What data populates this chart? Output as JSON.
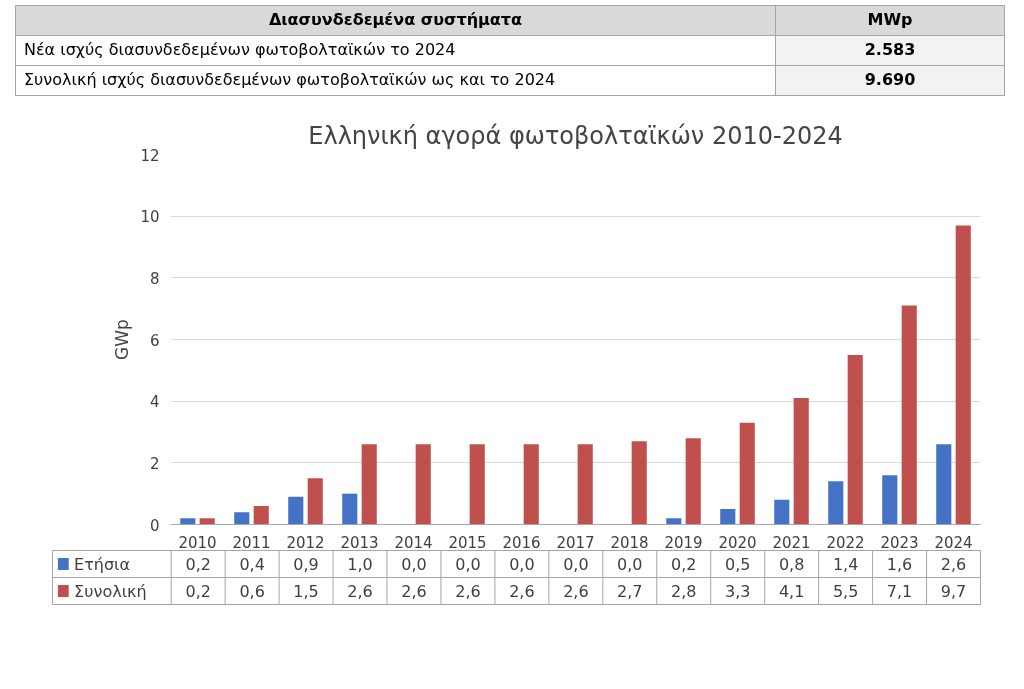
{
  "chart_data": [
    {
      "type": "other",
      "annotations": [
        "Διασυνδεδεμένα συστήματα",
        "MWp",
        "Νέα ισχύς διασυνδεδεμένων φωτοβολταϊκών το 2024",
        "2.583",
        "Συνολική ισχύς διασυνδεδεμένων φωτοβολταϊκών ως και το 2024",
        "9.690"
      ]
    },
    {
      "type": "bar",
      "title": "Ελληνική αγορά φωτοβολταϊκών 2010-2024",
      "ylabel": "GWp",
      "categories": [
        "2010",
        "2011",
        "2012",
        "2013",
        "2014",
        "2015",
        "2016",
        "2017",
        "2018",
        "2019",
        "2020",
        "2021",
        "2022",
        "2023",
        "2024"
      ],
      "series": [
        {
          "name": "Ετήσια",
          "color": "#4472c4",
          "values": [
            0.2,
            0.4,
            0.9,
            1.0,
            0.0,
            0.0,
            0.0,
            0.0,
            0.0,
            0.2,
            0.5,
            0.8,
            1.4,
            1.6,
            2.6
          ],
          "value_labels": [
            "0,2",
            "0,4",
            "0,9",
            "1,0",
            "0,0",
            "0,0",
            "0,0",
            "0,0",
            "0,0",
            "0,2",
            "0,5",
            "0,8",
            "1,4",
            "1,6",
            "2,6"
          ]
        },
        {
          "name": "Συνολική",
          "color": "#c0504d",
          "values": [
            0.2,
            0.6,
            1.5,
            2.6,
            2.6,
            2.6,
            2.6,
            2.6,
            2.7,
            2.8,
            3.3,
            4.1,
            5.5,
            7.1,
            9.7
          ],
          "value_labels": [
            "0,2",
            "0,6",
            "1,5",
            "2,6",
            "2,6",
            "2,6",
            "2,6",
            "2,6",
            "2,7",
            "2,8",
            "3,3",
            "4,1",
            "5,5",
            "7,1",
            "9,7"
          ]
        }
      ],
      "ylim": [
        0,
        12
      ],
      "yticks": [
        0,
        2,
        4,
        6,
        8,
        10,
        12
      ],
      "grid": "y",
      "legend": "bottom"
    }
  ]
}
